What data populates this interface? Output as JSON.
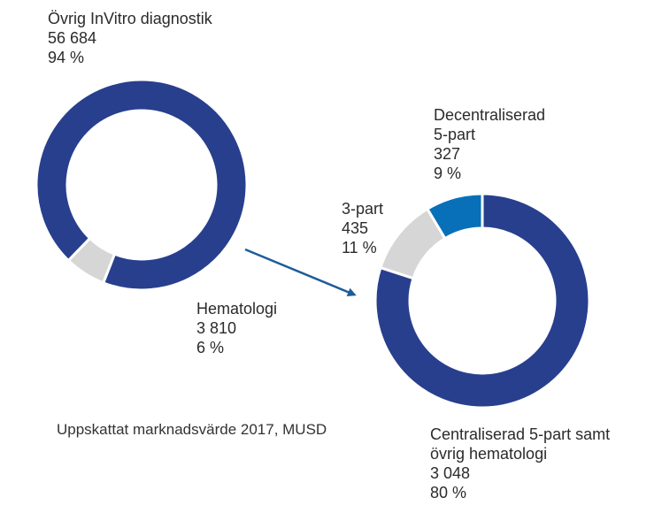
{
  "caption": "Uppskattat marknadsvärde 2017, MUSD",
  "colors": {
    "dark_blue": "#283f8e",
    "light_gray": "#d6d6d6",
    "bright_blue": "#0870b8",
    "arrow": "#1f5c99"
  },
  "chart_data": [
    {
      "type": "pie",
      "donut": true,
      "title": "",
      "slices": [
        {
          "label": "Övrig InVitro diagnostik",
          "value": 56684,
          "value_text": "56 684",
          "percent_text": "94 %",
          "color": "#283f8e"
        },
        {
          "label": "Hematologi",
          "value": 3810,
          "value_text": "3 810",
          "percent_text": "6 %",
          "color": "#d6d6d6"
        }
      ]
    },
    {
      "type": "pie",
      "donut": true,
      "title": "",
      "slices": [
        {
          "label": "Centraliserad 5-part samt övrig hematologi",
          "label_lines": [
            "Centraliserad 5-part samt",
            "övrig hematologi"
          ],
          "value": 3048,
          "value_text": "3 048",
          "percent_text": "80 %",
          "color": "#283f8e"
        },
        {
          "label": "3-part",
          "label_lines": [
            "3-part"
          ],
          "value": 435,
          "value_text": "435",
          "percent_text": "11 %",
          "color": "#d6d6d6"
        },
        {
          "label": "Decentraliserad 5-part",
          "label_lines": [
            "Decentraliserad",
            "5-part"
          ],
          "value": 327,
          "value_text": "327",
          "percent_text": "9 %",
          "color": "#0870b8"
        }
      ]
    }
  ]
}
